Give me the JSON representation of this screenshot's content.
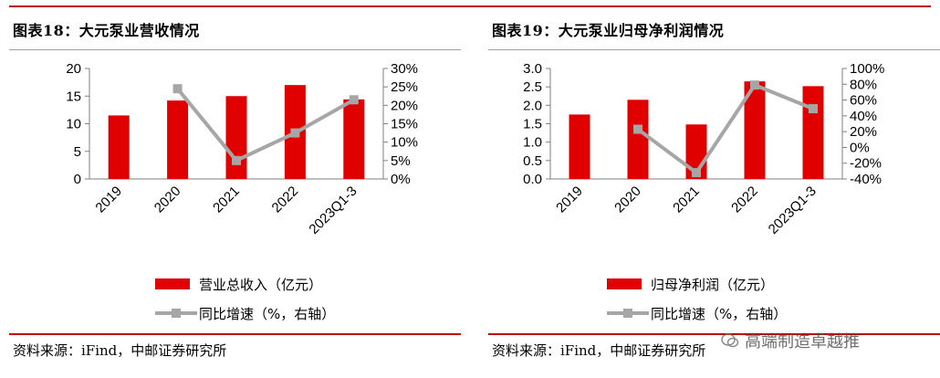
{
  "left": {
    "title": "图表18：大元泵业营收情况",
    "source": "资料来源：iFind，中邮证券研究所",
    "legend": {
      "bar": "营业总收入（亿元）",
      "line": "同比增速（%，右轴）"
    }
  },
  "right": {
    "title": "图表19：大元泵业归母净利润情况",
    "source": "资料来源：iFind，中邮证券研究所",
    "legend": {
      "bar": "归母净利润（亿元）",
      "line": "同比增速（%，右轴）"
    }
  },
  "watermark": "高端制造卓越推",
  "colors": {
    "bar": "#e00000",
    "line": "#a6a6a6",
    "accent": "#c00000"
  },
  "chart_data": [
    {
      "type": "bar",
      "categories": [
        "2019",
        "2020",
        "2021",
        "2022",
        "2023Q1-3"
      ],
      "series": [
        {
          "name": "营业总收入（亿元）",
          "type": "bar",
          "axis": "left",
          "values": [
            11.5,
            14.2,
            15.0,
            17.0,
            14.4
          ]
        },
        {
          "name": "同比增速（%，右轴）",
          "type": "line",
          "axis": "right",
          "values": [
            null,
            24.5,
            5.0,
            12.5,
            21.5
          ]
        }
      ],
      "ylim": [
        0,
        20
      ],
      "yticks": [
        "0",
        "5",
        "10",
        "15",
        "20"
      ],
      "y2lim": [
        0,
        30
      ],
      "y2ticks": [
        "0%",
        "5%",
        "10%",
        "15%",
        "20%",
        "25%",
        "30%"
      ],
      "legend_position": "bottom"
    },
    {
      "type": "bar",
      "categories": [
        "2019",
        "2020",
        "2021",
        "2022",
        "2023Q1-3"
      ],
      "series": [
        {
          "name": "归母净利润（亿元）",
          "type": "bar",
          "axis": "left",
          "values": [
            1.75,
            2.15,
            1.48,
            2.65,
            2.52
          ]
        },
        {
          "name": "同比增速（%，右轴）",
          "type": "line",
          "axis": "right",
          "values": [
            null,
            23,
            -32,
            79,
            49
          ]
        }
      ],
      "ylim": [
        0,
        3
      ],
      "yticks": [
        "0.0",
        "0.5",
        "1.0",
        "1.5",
        "2.0",
        "2.5",
        "3.0"
      ],
      "y2lim": [
        -40,
        100
      ],
      "y2ticks": [
        "-40%",
        "-20%",
        "0%",
        "20%",
        "40%",
        "60%",
        "80%",
        "100%"
      ],
      "legend_position": "bottom"
    }
  ]
}
